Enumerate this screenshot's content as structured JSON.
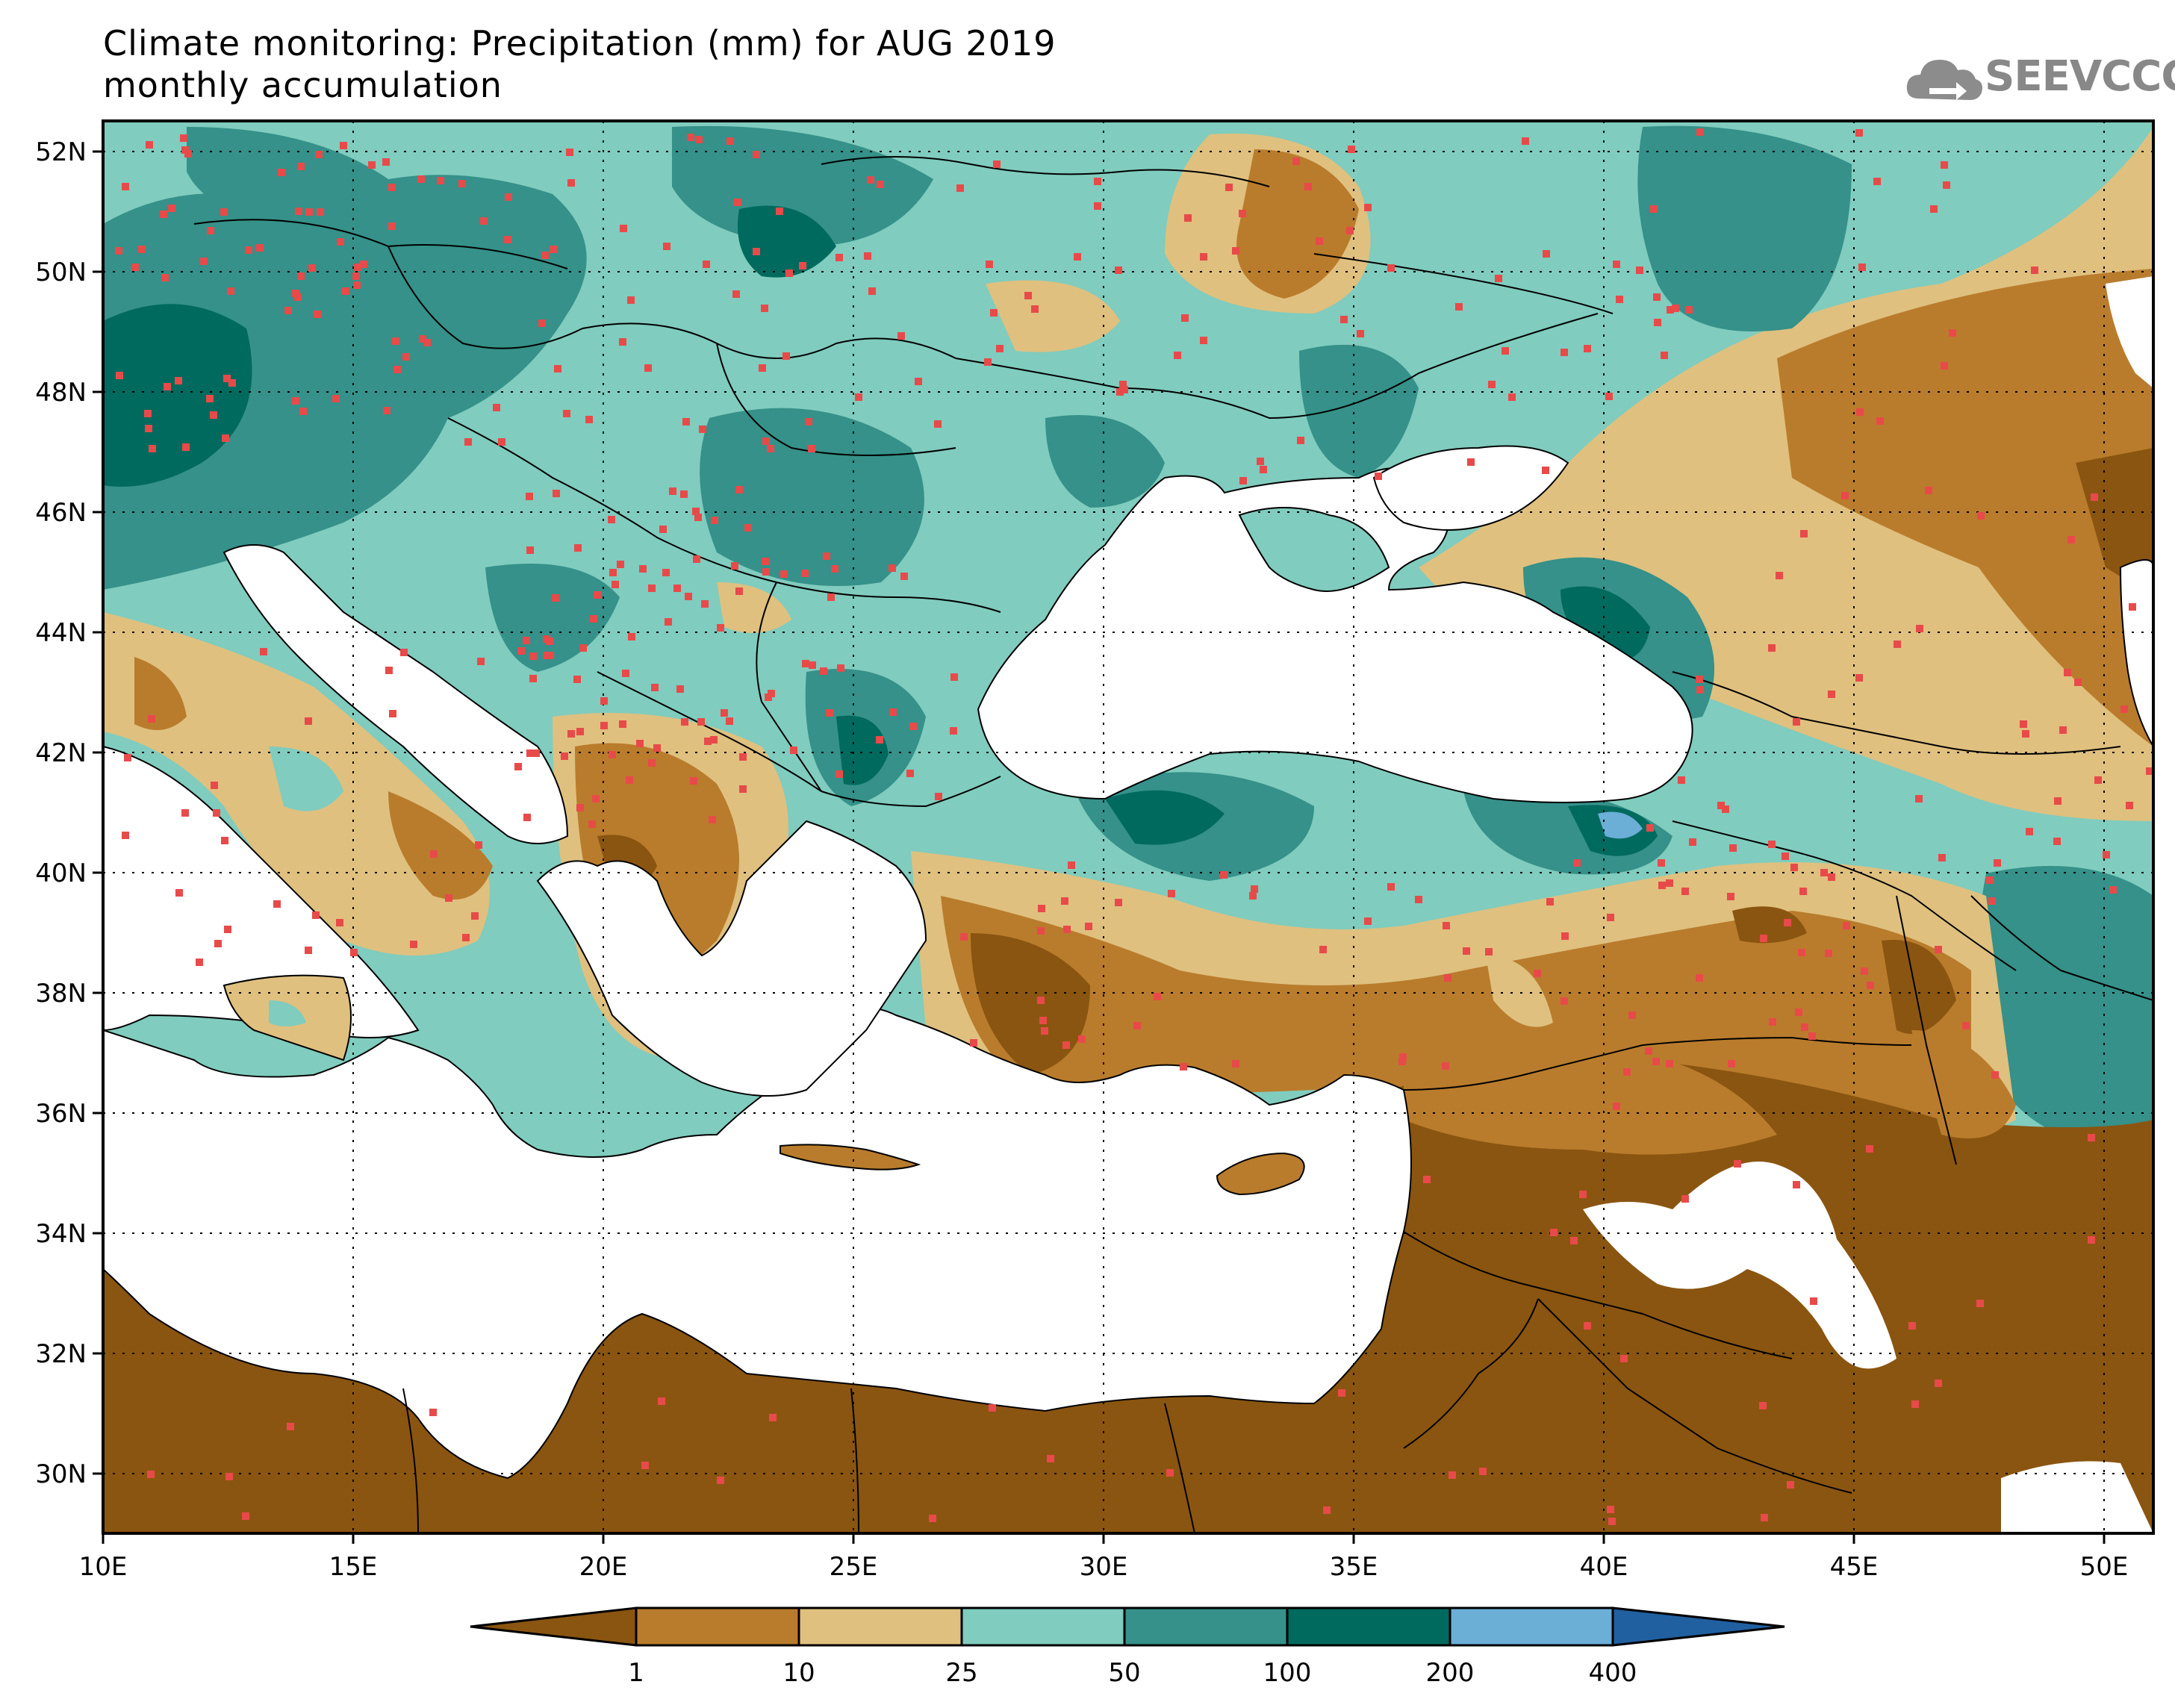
{
  "title": {
    "line1": "Climate monitoring: Precipitation (mm) for AUG 2019",
    "line2": "monthly accumulation"
  },
  "logo": {
    "text": "SEEVCCC",
    "icon": "cloud-icon"
  },
  "map": {
    "lon_range": [
      10,
      51
    ],
    "lat_range": [
      29,
      52.5
    ],
    "lon_ticks": [
      "10E",
      "15E",
      "20E",
      "25E",
      "30E",
      "35E",
      "40E",
      "45E",
      "50E"
    ],
    "lat_ticks": [
      "30N",
      "32N",
      "34N",
      "36N",
      "38N",
      "40N",
      "42N",
      "44N",
      "46N",
      "48N",
      "50N",
      "52N"
    ],
    "station_color": "#e84a4a"
  },
  "colorbar": {
    "boundaries": [
      "1",
      "10",
      "25",
      "50",
      "100",
      "200",
      "400"
    ],
    "colors": [
      "#8a5510",
      "#b97c2c",
      "#dfc07f",
      "#80ccbe",
      "#359189",
      "#006a5e",
      "#6baed6",
      "#2060a0"
    ]
  }
}
